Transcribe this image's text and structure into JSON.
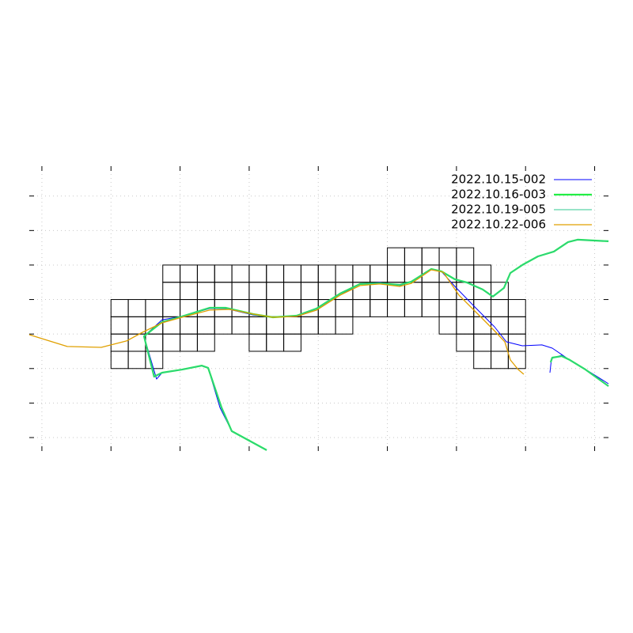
{
  "chart_data": {
    "type": "line",
    "xlim": [
      -0.73,
      32.8
    ],
    "ylim": [
      -0.78,
      15.73
    ],
    "xticks": [
      0,
      4,
      8,
      12,
      16,
      20,
      24,
      28,
      32
    ],
    "yticks": [
      0,
      2,
      4,
      6,
      8,
      10,
      12,
      14
    ],
    "grid": true,
    "legend": "upper right",
    "cells": [
      [
        4,
        4,
        7
      ],
      [
        4,
        25,
        28
      ],
      [
        5,
        4,
        10
      ],
      [
        5,
        12,
        15
      ],
      [
        5,
        24,
        28
      ],
      [
        6,
        4,
        18
      ],
      [
        6,
        23,
        28
      ],
      [
        7,
        4,
        28
      ],
      [
        8,
        7,
        27
      ],
      [
        9,
        7,
        26
      ],
      [
        10,
        20,
        25
      ]
    ],
    "series": [
      {
        "name": "2022.10.15-002",
        "color": "#0000ff",
        "line_width": 1,
        "x": [
          13.01,
          10.99,
          10.31,
          9.62,
          9.25,
          8.11,
          6.96,
          6.64,
          5.91,
          6.96,
          8.11,
          9.71,
          10.63,
          12.23,
          13.38,
          14.75,
          15.9,
          17.27,
          18.42,
          19.56,
          20.71,
          21.39,
          22.54,
          23.13,
          23.91,
          25.06,
          26.2,
          26.89,
          27.81,
          28.95,
          29.55,
          30.55,
          31.7,
          32.8,
          null,
          29.41,
          29.5,
          30.1,
          30.65
        ],
        "values": [
          -0.73,
          0.37,
          1.74,
          4.04,
          4.17,
          3.94,
          3.76,
          3.39,
          5.87,
          6.83,
          7.02,
          7.48,
          7.48,
          7.11,
          6.97,
          7.02,
          7.39,
          8.26,
          8.9,
          8.99,
          8.81,
          9.04,
          9.77,
          9.63,
          8.76,
          7.57,
          6.42,
          5.55,
          5.32,
          5.37,
          5.18,
          4.5,
          3.81,
          3.12,
          null,
          3.76,
          4.59,
          4.77,
          4.45
        ]
      },
      {
        "name": "2022.10.16-003",
        "color": "#22ee44",
        "line_width": 2.2,
        "x": [
          13.01,
          10.99,
          10.4,
          9.62,
          9.25,
          8.11,
          6.96,
          6.5,
          5.91,
          6.96,
          8.11,
          9.71,
          10.63,
          12.23,
          13.38,
          14.75,
          15.9,
          17.27,
          18.42,
          19.56,
          20.71,
          21.39,
          22.54,
          23.13,
          23.91,
          24.6,
          25.52,
          26.11,
          26.75,
          27.12,
          27.81,
          28.72,
          29.64,
          30.46,
          31.01,
          32.8,
          null,
          29.45,
          29.55,
          30.1,
          30.56,
          31.47,
          32.8
        ],
        "values": [
          -0.73,
          0.37,
          1.74,
          4.04,
          4.17,
          3.94,
          3.76,
          3.53,
          5.87,
          6.7,
          7.02,
          7.52,
          7.52,
          7.16,
          6.97,
          7.06,
          7.48,
          8.35,
          8.9,
          8.94,
          8.85,
          9.04,
          9.77,
          9.63,
          9.17,
          8.99,
          8.58,
          8.17,
          8.67,
          9.54,
          10.0,
          10.5,
          10.78,
          11.33,
          11.47,
          11.38,
          null,
          4.36,
          4.63,
          4.72,
          4.5,
          3.94,
          2.98
        ]
      },
      {
        "name": "2022.10.19-005",
        "color": "#30c890",
        "line_width": 1,
        "x": [
          13.01,
          10.99,
          10.4,
          9.62,
          9.25,
          8.11,
          6.96,
          6.5,
          5.91,
          6.96,
          8.11,
          9.71,
          10.63,
          12.23,
          13.38,
          14.75,
          15.9,
          17.27,
          18.42,
          19.56,
          20.71,
          21.39,
          22.54,
          23.13,
          23.91,
          24.6,
          25.52,
          26.11,
          26.75,
          27.12,
          27.81,
          28.72,
          29.64,
          30.46,
          31.01,
          32.8,
          null,
          29.45,
          29.55,
          30.1,
          30.56,
          31.47,
          32.8
        ],
        "values": [
          -0.73,
          0.37,
          1.74,
          4.04,
          4.17,
          3.94,
          3.76,
          3.53,
          5.87,
          6.7,
          7.02,
          7.52,
          7.52,
          7.16,
          6.97,
          7.06,
          7.48,
          8.35,
          8.9,
          8.94,
          8.85,
          9.04,
          9.77,
          9.63,
          9.17,
          8.99,
          8.58,
          8.17,
          8.67,
          9.54,
          10.0,
          10.5,
          10.78,
          11.33,
          11.47,
          11.38,
          null,
          4.36,
          4.63,
          4.72,
          4.5,
          3.94,
          2.98
        ]
      },
      {
        "name": "2022.10.22-006",
        "color": "#e0a000",
        "line_width": 1.3,
        "x": [
          -0.73,
          1.47,
          3.44,
          4.9,
          5.82,
          6.96,
          8.11,
          9.71,
          10.86,
          12.23,
          13.38,
          14.75,
          15.9,
          17.27,
          18.42,
          19.56,
          20.71,
          21.39,
          22.54,
          23.23,
          24.14,
          25.29,
          26.2,
          26.8,
          27.12,
          27.58,
          27.9
        ],
        "values": [
          5.96,
          5.28,
          5.23,
          5.6,
          6.1,
          6.65,
          6.97,
          7.39,
          7.43,
          7.16,
          6.97,
          7.02,
          7.39,
          8.26,
          8.81,
          8.9,
          8.76,
          8.94,
          9.72,
          9.59,
          8.26,
          7.11,
          6.19,
          5.55,
          4.5,
          3.94,
          3.67
        ]
      }
    ]
  }
}
